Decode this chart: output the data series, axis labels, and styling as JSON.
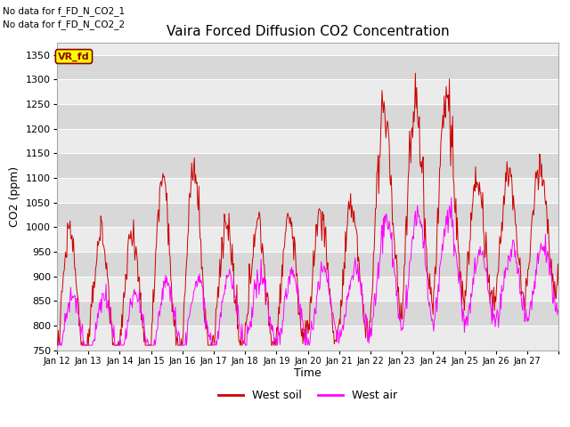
{
  "title": "Vaira Forced Diffusion CO2 Concentration",
  "ylabel": "CO2 (ppm)",
  "xlabel": "Time",
  "ylim": [
    750,
    1375
  ],
  "yticks": [
    750,
    800,
    850,
    900,
    950,
    1000,
    1050,
    1100,
    1150,
    1200,
    1250,
    1300,
    1350
  ],
  "x_labels": [
    "Jan 12",
    "Jan 13",
    "Jan 14",
    "Jan 15",
    "Jan 16",
    "Jan 17",
    "Jan 18",
    "Jan 19",
    "Jan 20",
    "Jan 21",
    "Jan 22",
    "Jan 23",
    "Jan 24",
    "Jan 25",
    "Jan 26",
    "Jan 27"
  ],
  "annotation_lines": [
    "No data for f_FD_N_CO2_1",
    "No data for f_FD_N_CO2_2"
  ],
  "legend_label1": "West soil",
  "legend_label2": "West air",
  "line_color1": "#cc0000",
  "line_color2": "#ff00ff",
  "vr_fd_box_color": "#ffff00",
  "vr_fd_text_color": "#8b0000",
  "plot_bg_light": "#ebebeb",
  "plot_bg_dark": "#d8d8d8",
  "figsize": [
    6.4,
    4.8
  ],
  "dpi": 100
}
